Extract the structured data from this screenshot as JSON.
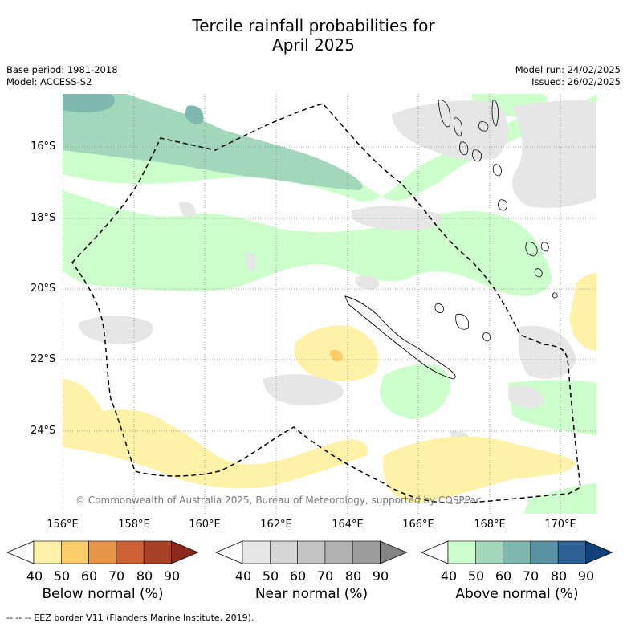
{
  "title_line1": "Tercile rainfall probabilities for",
  "title_line2": "April 2025",
  "base_period": "Base period: 1981-2018",
  "model": "Model: ACCESS-S2",
  "model_run": "Model run: 24/02/2025",
  "issued": "Issued: 26/02/2025",
  "lat_labels": [
    "16°S",
    "18°S",
    "20°S",
    "22°S",
    "24°S"
  ],
  "lon_labels": [
    "156°E",
    "158°E",
    "160°E",
    "162°E",
    "164°E",
    "166°E",
    "168°E",
    "170°E"
  ],
  "copyright": "© Commonwealth of Australia 2025, Bureau of Meteorology, supported by COSPPac",
  "legends": [
    {
      "label": "Below normal (%)",
      "ticks": [
        "40",
        "50",
        "60",
        "70",
        "80",
        "90"
      ],
      "colors": [
        "#ffffff",
        "#fff2a8",
        "#fdcd6a",
        "#e8954a",
        "#cd6134",
        "#aa4028",
        "#8b2a1c"
      ]
    },
    {
      "label": "Near normal (%)",
      "ticks": [
        "40",
        "50",
        "60",
        "70",
        "80",
        "90"
      ],
      "colors": [
        "#ffffff",
        "#e6e6e6",
        "#d6d6d6",
        "#c4c4c4",
        "#b0b0b0",
        "#9c9c9c",
        "#848484"
      ]
    },
    {
      "label": "Above normal (%)",
      "ticks": [
        "40",
        "50",
        "60",
        "70",
        "80",
        "90"
      ],
      "colors": [
        "#ffffff",
        "#ccffcc",
        "#a2d7bb",
        "#7fb8ae",
        "#5b92a3",
        "#2d6195",
        "#0f427a"
      ]
    }
  ],
  "footer": "--  --  -- EEZ border V11 (Flanders Marine Institute, 2019)."
}
